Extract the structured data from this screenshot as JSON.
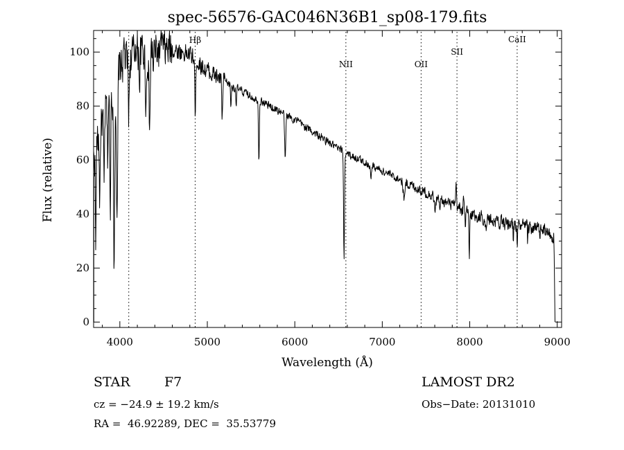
{
  "chart_data": {
    "type": "line",
    "title": "spec-56576-GAC046N36B1_sp08-179.fits",
    "xlabel": "Wavelength (Å)",
    "ylabel": "Flux (relative)",
    "xlim": [
      3700,
      9050
    ],
    "ylim": [
      -2,
      108
    ],
    "xticks": [
      4000,
      5000,
      6000,
      7000,
      8000,
      9000
    ],
    "yticks": [
      0,
      20,
      40,
      60,
      80,
      100
    ],
    "grid": false,
    "line_color": "#000000",
    "lines": [
      {
        "name": "Hβ",
        "x": 4861
      },
      {
        "name": "",
        "x": 4102
      },
      {
        "name": "NII",
        "x": 6584
      },
      {
        "name": "OII",
        "x": 7444
      },
      {
        "name": "SII",
        "x": 7854
      },
      {
        "name": "CaII",
        "x": 8542
      }
    ],
    "continuum": [
      [
        3700,
        60
      ],
      [
        3800,
        75
      ],
      [
        3900,
        85
      ],
      [
        4000,
        95
      ],
      [
        4200,
        100
      ],
      [
        4400,
        100
      ],
      [
        4600,
        101
      ],
      [
        4800,
        99
      ],
      [
        5000,
        93
      ],
      [
        5300,
        87
      ],
      [
        5600,
        82
      ],
      [
        6000,
        75
      ],
      [
        6500,
        64
      ],
      [
        7000,
        56
      ],
      [
        7500,
        48
      ],
      [
        8000,
        40
      ],
      [
        8500,
        36
      ],
      [
        8850,
        34
      ],
      [
        8960,
        31
      ]
    ],
    "absorption_features": [
      [
        3725,
        40,
        4
      ],
      [
        3770,
        25,
        5
      ],
      [
        3820,
        30,
        5
      ],
      [
        3860,
        20,
        5
      ],
      [
        3890,
        45,
        5
      ],
      [
        3934,
        65,
        7
      ],
      [
        3968,
        60,
        7
      ],
      [
        4102,
        20,
        6
      ],
      [
        4227,
        12,
        4
      ],
      [
        4300,
        18,
        8
      ],
      [
        4340,
        28,
        7
      ],
      [
        4384,
        8,
        3
      ],
      [
        4861,
        25,
        4
      ],
      [
        5170,
        14,
        6
      ],
      [
        5270,
        8,
        4
      ],
      [
        5330,
        6,
        4
      ],
      [
        5590,
        22,
        5
      ],
      [
        5890,
        18,
        6
      ],
      [
        6563,
        40,
        5
      ],
      [
        6870,
        5,
        6
      ],
      [
        7250,
        6,
        10
      ],
      [
        7605,
        5,
        8
      ],
      [
        7660,
        5,
        4
      ],
      [
        7950,
        8,
        4
      ],
      [
        7995,
        18,
        4
      ],
      [
        8185,
        5,
        6
      ],
      [
        8400,
        5,
        4
      ],
      [
        8498,
        5,
        3
      ],
      [
        8542,
        7,
        3
      ],
      [
        8662,
        6,
        3
      ],
      [
        8800,
        4,
        3
      ]
    ],
    "emission_features": [
      [
        4050,
        6,
        5
      ],
      [
        4180,
        7,
        4
      ],
      [
        4480,
        6,
        4
      ],
      [
        7845,
        8,
        4
      ],
      [
        7930,
        7,
        4
      ]
    ]
  },
  "info": {
    "class_label": "STAR",
    "subclass": "F7",
    "survey": "LAMOST DR2",
    "velocity": "cz = −24.9 ± 19.2 km/s",
    "obs_date": "Obs−Date: 20131010",
    "coords": "RA =  46.92289, DEC =  35.53779"
  }
}
